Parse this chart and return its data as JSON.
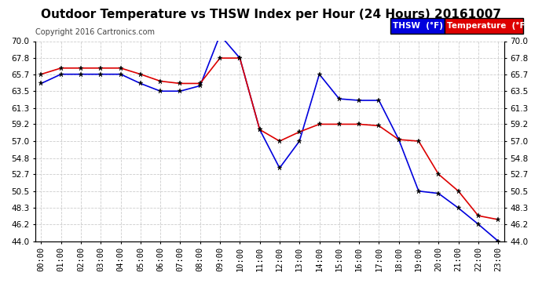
{
  "title": "Outdoor Temperature vs THSW Index per Hour (24 Hours) 20161007",
  "copyright": "Copyright 2016 Cartronics.com",
  "background_color": "#ffffff",
  "plot_background": "#ffffff",
  "grid_color": "#cccccc",
  "hours": [
    "00:00",
    "01:00",
    "02:00",
    "03:00",
    "04:00",
    "05:00",
    "06:00",
    "07:00",
    "08:00",
    "09:00",
    "10:00",
    "11:00",
    "12:00",
    "13:00",
    "14:00",
    "15:00",
    "16:00",
    "17:00",
    "18:00",
    "19:00",
    "20:00",
    "21:00",
    "22:00",
    "23:00"
  ],
  "thsw": [
    64.5,
    65.7,
    65.7,
    65.7,
    65.7,
    64.5,
    63.5,
    63.5,
    64.2,
    70.8,
    67.8,
    58.5,
    53.5,
    57.0,
    65.7,
    62.5,
    62.3,
    62.3,
    57.2,
    50.5,
    50.2,
    48.3,
    46.2,
    44.0
  ],
  "temperature": [
    65.7,
    66.5,
    66.5,
    66.5,
    66.5,
    65.7,
    64.8,
    64.5,
    64.5,
    67.8,
    67.8,
    58.5,
    57.0,
    58.2,
    59.2,
    59.2,
    59.2,
    59.0,
    57.2,
    57.0,
    52.7,
    50.5,
    47.3,
    46.8
  ],
  "thsw_color": "#0000dd",
  "temp_color": "#dd0000",
  "ylim_min": 44.0,
  "ylim_max": 70.0,
  "yticks": [
    44.0,
    46.2,
    48.3,
    50.5,
    52.7,
    54.8,
    57.0,
    59.2,
    61.3,
    63.5,
    65.7,
    67.8,
    70.0
  ],
  "legend_thsw_label": "THSW  (°F)",
  "legend_temp_label": "Temperature  (°F)",
  "legend_thsw_bg": "#0000dd",
  "legend_temp_bg": "#dd0000",
  "title_fontsize": 11,
  "tick_fontsize": 7.5,
  "copyright_fontsize": 7
}
